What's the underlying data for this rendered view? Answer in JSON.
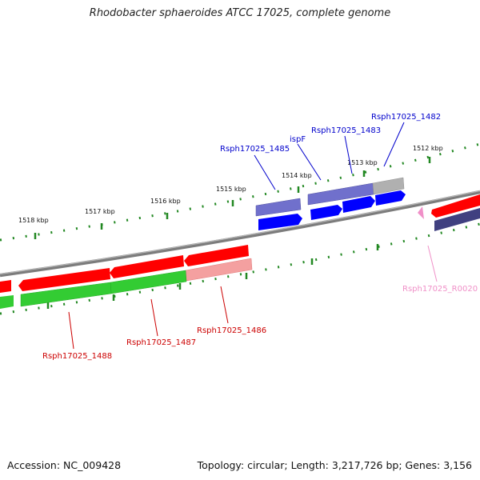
{
  "title": "Rhodobacter sphaeroides ATCC 17025, complete genome",
  "footer": {
    "accession": "Accession: NC_009428",
    "summary": "Topology: circular; Length: 3,217,726 bp; Genes: 3,156"
  },
  "scale_labels": [
    {
      "id": "1518",
      "text": "1518 kbp"
    },
    {
      "id": "1517",
      "text": "1517 kbp"
    },
    {
      "id": "1516",
      "text": "1516 kbp"
    },
    {
      "id": "1515",
      "text": "1515 kbp"
    },
    {
      "id": "1514",
      "text": "1514 kbp"
    },
    {
      "id": "1513",
      "text": "1513 kbp"
    },
    {
      "id": "1512",
      "text": "1512 kbp"
    }
  ],
  "gene_labels": [
    {
      "id": "rsph17025_1482",
      "text": "Rsph17025_1482",
      "color": "#0000cc"
    },
    {
      "id": "rsph17025_1483",
      "text": "Rsph17025_1483",
      "color": "#0000cc"
    },
    {
      "id": "ispf",
      "text": "ispF",
      "color": "#0000cc"
    },
    {
      "id": "rsph17025_1485",
      "text": "Rsph17025_1485",
      "color": "#0000cc"
    },
    {
      "id": "rsph17025_r0020",
      "text": "Rsph17025_R0020",
      "color": "#f090c8"
    },
    {
      "id": "rsph17025_1486",
      "text": "Rsph17025_1486",
      "color": "#cc0000"
    },
    {
      "id": "rsph17025_1487",
      "text": "Rsph17025_1487",
      "color": "#cc0000"
    },
    {
      "id": "rsph17025_1488",
      "text": "Rsph17025_1488",
      "color": "#cc0000"
    }
  ],
  "colors": {
    "backbone": "#808080",
    "cds_forward": "#0000ff",
    "cds_reverse": "#ff0000",
    "gene_green": "#33cc33",
    "gene_purple": "#7070cc",
    "gene_dark_purple": "#404080",
    "gene_gray": "#b0b0b0",
    "gene_pink": "#f4a0a0",
    "trna_pink": "#f090c8",
    "tick_green": "#228822"
  }
}
